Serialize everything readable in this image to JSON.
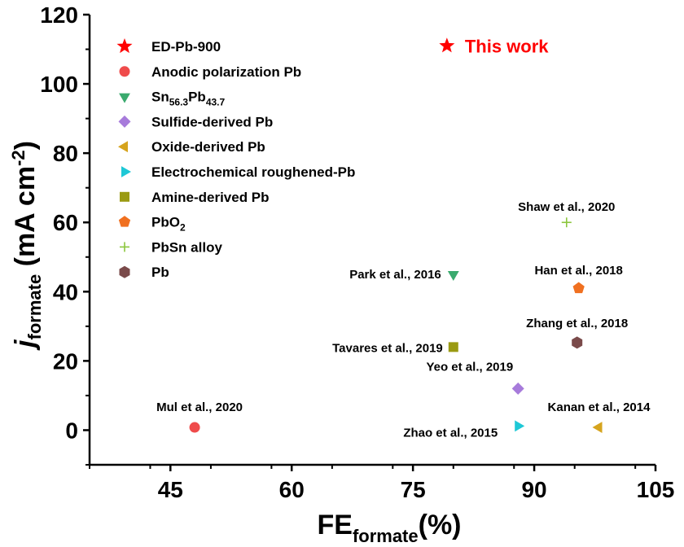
{
  "chart_data": {
    "type": "scatter",
    "xlabel": {
      "main": "FE",
      "sub": "formate",
      "tail": "(%)"
    },
    "ylabel": {
      "main": "j",
      "sub": "formate",
      "tail": " (mA cm",
      "sup": "-2",
      "close": ")"
    },
    "xlim": [
      35,
      105
    ],
    "ylim": [
      -10,
      120
    ],
    "xticks": [
      "45",
      "60",
      "75",
      "90",
      "105"
    ],
    "yticks": [
      "0",
      "20",
      "40",
      "60",
      "80",
      "100",
      "120"
    ],
    "grid": false,
    "legend_position": "top-left",
    "series": [
      {
        "name": "ED-Pb-900",
        "marker": "star",
        "color": "#ff0000",
        "points": [
          {
            "x": 79.2,
            "y": 111,
            "annotation": "This work"
          }
        ]
      },
      {
        "name": "Anodic polarization Pb",
        "marker": "circle",
        "color": "#ef4b4b",
        "points": [
          {
            "x": 48,
            "y": 0.8,
            "annotation": "Mul et al., 2020"
          }
        ]
      },
      {
        "name": "Sn56.3Pb43.7",
        "name_parts": {
          "a": "Sn",
          "a_sub": "56.3",
          "b": "Pb",
          "b_sub": "43.7"
        },
        "marker": "triangle-down",
        "color": "#3aaa6e",
        "points": [
          {
            "x": 80,
            "y": 45,
            "annotation": "Park et al., 2016"
          }
        ]
      },
      {
        "name": "Sulfide-derived Pb",
        "marker": "diamond",
        "color": "#a77bdb",
        "points": [
          {
            "x": 88,
            "y": 12,
            "annotation": "Yeo et al., 2019"
          }
        ]
      },
      {
        "name": "Oxide-derived Pb",
        "marker": "triangle-left",
        "color": "#d6a41e",
        "points": [
          {
            "x": 98,
            "y": 0.8,
            "annotation": "Kanan et al., 2014"
          }
        ]
      },
      {
        "name": "Electrochemical roughened-Pb",
        "marker": "triangle-right",
        "color": "#1ec8d6",
        "points": [
          {
            "x": 88,
            "y": 1.2,
            "annotation": "Zhao et al., 2015"
          }
        ]
      },
      {
        "name": "Amine-derived Pb",
        "marker": "square",
        "color": "#9a9a12",
        "points": [
          {
            "x": 80,
            "y": 24,
            "annotation": "Tavares et al., 2019"
          }
        ]
      },
      {
        "name": "PbO2",
        "name_parts": {
          "a": "PbO",
          "a_sub": "2"
        },
        "marker": "pentagon",
        "color": "#f07020",
        "points": [
          {
            "x": 95.5,
            "y": 41,
            "annotation": "Han et al., 2018"
          }
        ]
      },
      {
        "name": "PbSn alloy",
        "marker": "plus",
        "color": "#8cc63e",
        "points": [
          {
            "x": 94,
            "y": 60,
            "annotation": "Shaw et al., 2020"
          }
        ]
      },
      {
        "name": "Pb",
        "marker": "hexagon",
        "color": "#7a4a4a",
        "points": [
          {
            "x": 95.3,
            "y": 25.3,
            "annotation": "Zhang et al., 2018"
          }
        ]
      }
    ]
  }
}
